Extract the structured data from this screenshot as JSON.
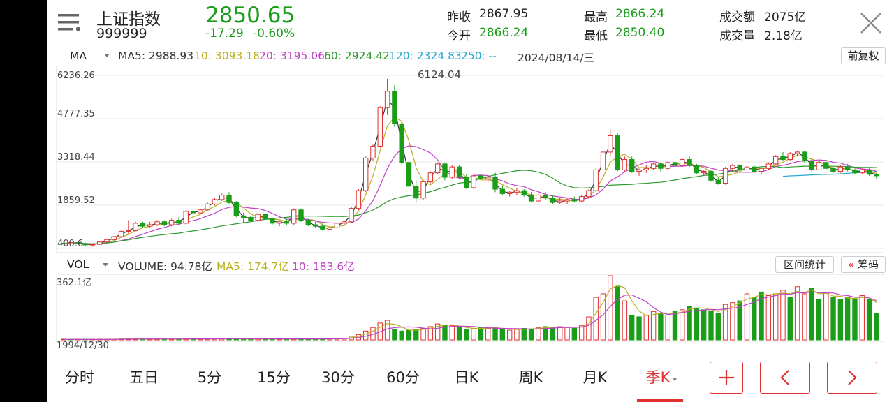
{
  "header": {
    "title": "上证指数",
    "code": "999999",
    "price": "2850.65",
    "change": "-17.29",
    "change_pct": "-0.60%",
    "stats": [
      {
        "label": "昨收",
        "value": "2867.95",
        "color": "#222222"
      },
      {
        "label": "今开",
        "value": "2866.24",
        "color": "#1a9e1a"
      },
      {
        "label": "最高",
        "value": "2866.24",
        "color": "#1a9e1a"
      },
      {
        "label": "最低",
        "value": "2850.40",
        "color": "#1a9e1a"
      },
      {
        "label": "成交额",
        "value": "2075亿",
        "color": "#222222"
      },
      {
        "label": "成交量",
        "value": "2.18亿",
        "color": "#222222"
      }
    ]
  },
  "ma_bar": {
    "label": "MA",
    "ma5": "MA5: 2988.93",
    "ma10": "10: 3093.18",
    "ma20": "20: 3195.06",
    "ma60": "60: 2924.42",
    "ma120": "120: 2324.83",
    "ma250": "250: --",
    "date": "2024/08/14/三",
    "adjust_button": "前复权"
  },
  "vol_bar": {
    "label": "VOL",
    "volume": "VOLUME: 94.78亿",
    "ma5": "MA5: 174.7亿",
    "ma10": "10: 183.6亿",
    "range_stat_button": "区间统计",
    "chips_button": "筹码",
    "chips_icon": "«"
  },
  "chart": {
    "y_ticks": [
      "6236.26",
      "4777.35",
      "3318.44",
      "1859.52",
      "400.6"
    ],
    "peak_label": "6124.04",
    "vol_max_label": "362.1亿",
    "start_date": "1994/12/30"
  },
  "colors": {
    "up": "#e03030",
    "down": "#1a9e1a",
    "ma5": "#333333",
    "ma10": "#b8b020",
    "ma20": "#c040c8",
    "ma60": "#2e9a2e",
    "ma120": "#2aa8d0"
  },
  "tabs": [
    "分时",
    "五日",
    "5分",
    "15分",
    "30分",
    "60分",
    "日K",
    "周K",
    "月K",
    "季K"
  ],
  "active_tab": "季K",
  "nav_icons": [
    "plus-icon",
    "chevron-left-icon",
    "chevron-right-icon"
  ],
  "chart_data": {
    "type": "candlestick",
    "y_range": [
      400.6,
      6236.26
    ],
    "ohlc": [
      [
        580,
        640,
        520,
        560
      ],
      [
        560,
        620,
        520,
        600
      ],
      [
        600,
        650,
        540,
        570
      ],
      [
        570,
        600,
        470,
        520
      ],
      [
        520,
        560,
        460,
        540
      ],
      [
        540,
        640,
        520,
        620
      ],
      [
        620,
        720,
        600,
        700
      ],
      [
        700,
        820,
        680,
        800
      ],
      [
        800,
        1000,
        780,
        980
      ],
      [
        980,
        1350,
        900,
        1000
      ],
      [
        1000,
        1300,
        980,
        1250
      ],
      [
        1250,
        1300,
        1100,
        1150
      ],
      [
        1150,
        1300,
        1100,
        1200
      ],
      [
        1200,
        1350,
        1150,
        1300
      ],
      [
        1300,
        1350,
        1150,
        1200
      ],
      [
        1200,
        1400,
        1150,
        1350
      ],
      [
        1350,
        1450,
        1200,
        1250
      ],
      [
        1250,
        1700,
        1200,
        1650
      ],
      [
        1650,
        1800,
        1500,
        1600
      ],
      [
        1600,
        1750,
        1550,
        1700
      ],
      [
        1700,
        1950,
        1650,
        1900
      ],
      [
        1900,
        2100,
        1850,
        2050
      ],
      [
        2050,
        2250,
        2000,
        2200
      ],
      [
        2200,
        2300,
        1900,
        1950
      ],
      [
        1950,
        2000,
        1450,
        1500
      ],
      [
        1500,
        1600,
        1250,
        1450
      ],
      [
        1450,
        1500,
        1300,
        1350
      ],
      [
        1350,
        1600,
        1300,
        1550
      ],
      [
        1550,
        1600,
        1350,
        1400
      ],
      [
        1400,
        1450,
        1200,
        1250
      ],
      [
        1250,
        1350,
        1150,
        1300
      ],
      [
        1300,
        1400,
        1200,
        1250
      ],
      [
        1250,
        1750,
        1200,
        1700
      ],
      [
        1700,
        1750,
        1300,
        1350
      ],
      [
        1350,
        1400,
        1150,
        1200
      ],
      [
        1200,
        1300,
        1100,
        1150
      ],
      [
        1150,
        1250,
        1000,
        1050
      ],
      [
        1050,
        1150,
        1020,
        1100
      ],
      [
        1100,
        1300,
        1050,
        1250
      ],
      [
        1250,
        1350,
        1150,
        1300
      ],
      [
        1300,
        1800,
        1250,
        1750
      ],
      [
        1750,
        2400,
        1700,
        2350
      ],
      [
        2350,
        3500,
        2300,
        3450
      ],
      [
        3450,
        3900,
        3350,
        3850
      ],
      [
        3850,
        5200,
        3800,
        5150
      ],
      [
        5150,
        6124,
        4900,
        5700
      ],
      [
        5700,
        5900,
        4500,
        4600
      ],
      [
        4600,
        4700,
        3200,
        3300
      ],
      [
        3300,
        3400,
        2400,
        2500
      ],
      [
        2500,
        2700,
        1950,
        2100
      ],
      [
        2100,
        2700,
        2050,
        2650
      ],
      [
        2650,
        3000,
        2600,
        2950
      ],
      [
        2950,
        3300,
        2900,
        3250
      ],
      [
        3250,
        3300,
        2700,
        2800
      ],
      [
        2800,
        3200,
        2750,
        3150
      ],
      [
        3150,
        3200,
        2750,
        2800
      ],
      [
        2800,
        2900,
        2400,
        2450
      ],
      [
        2450,
        2900,
        2400,
        2850
      ],
      [
        2850,
        2950,
        2700,
        2750
      ],
      [
        2750,
        2850,
        2650,
        2800
      ],
      [
        2800,
        2950,
        2300,
        2400
      ],
      [
        2400,
        2500,
        2200,
        2250
      ],
      [
        2250,
        2350,
        2150,
        2300
      ],
      [
        2300,
        2450,
        2200,
        2350
      ],
      [
        2350,
        2400,
        2150,
        2200
      ],
      [
        2200,
        2300,
        1950,
        2000
      ],
      [
        2000,
        2250,
        1950,
        2200
      ],
      [
        2200,
        2300,
        2050,
        2100
      ],
      [
        2100,
        2200,
        1900,
        1950
      ],
      [
        1950,
        2100,
        1900,
        2000
      ],
      [
        2000,
        2100,
        1900,
        2050
      ],
      [
        2050,
        2150,
        1950,
        2000
      ],
      [
        2000,
        2200,
        1950,
        2150
      ],
      [
        2150,
        2400,
        2100,
        2350
      ],
      [
        2350,
        3100,
        2300,
        3050
      ],
      [
        3050,
        3700,
        3000,
        3650
      ],
      [
        3650,
        4400,
        3500,
        4200
      ],
      [
        4200,
        4300,
        3000,
        3050
      ],
      [
        3050,
        3500,
        3000,
        3400
      ],
      [
        3400,
        3500,
        2950,
        3000
      ],
      [
        3000,
        3100,
        2850,
        3050
      ],
      [
        3050,
        3200,
        2950,
        3100
      ],
      [
        3100,
        3300,
        3050,
        3250
      ],
      [
        3250,
        3300,
        3000,
        3100
      ],
      [
        3100,
        3350,
        3050,
        3300
      ],
      [
        3300,
        3400,
        3150,
        3200
      ],
      [
        3200,
        3450,
        3150,
        3400
      ],
      [
        3400,
        3500,
        3150,
        3200
      ],
      [
        3200,
        3250,
        2900,
        2950
      ],
      [
        2950,
        3050,
        2850,
        3000
      ],
      [
        3000,
        3050,
        2650,
        2700
      ],
      [
        2700,
        2800,
        2550,
        2600
      ],
      [
        2600,
        3150,
        2550,
        3100
      ],
      [
        3100,
        3250,
        3000,
        3200
      ],
      [
        3200,
        3250,
        2950,
        3050
      ],
      [
        3050,
        3200,
        2950,
        3150
      ],
      [
        3150,
        3200,
        2950,
        3000
      ],
      [
        3000,
        3150,
        2900,
        3100
      ],
      [
        3100,
        3300,
        3050,
        3250
      ],
      [
        3250,
        3550,
        3200,
        3500
      ],
      [
        3500,
        3650,
        3350,
        3400
      ],
      [
        3400,
        3650,
        3350,
        3600
      ],
      [
        3600,
        3700,
        3500,
        3650
      ],
      [
        3650,
        3700,
        3300,
        3350
      ],
      [
        3350,
        3450,
        3000,
        3050
      ],
      [
        3050,
        3350,
        3000,
        3300
      ],
      [
        3300,
        3400,
        3050,
        3100
      ],
      [
        3100,
        3150,
        2950,
        3000
      ],
      [
        3000,
        3200,
        2950,
        3150
      ],
      [
        3150,
        3250,
        3000,
        3050
      ],
      [
        3050,
        3100,
        2900,
        2950
      ],
      [
        2950,
        3100,
        2900,
        3050
      ],
      [
        3050,
        3100,
        2850,
        2900
      ],
      [
        2900,
        2950,
        2750,
        2850
      ]
    ],
    "volume": [
      [
        3,
        1
      ],
      [
        2,
        0
      ],
      [
        3,
        1
      ],
      [
        2,
        0
      ],
      [
        2,
        1
      ],
      [
        3,
        1
      ],
      [
        4,
        1
      ],
      [
        4,
        1
      ],
      [
        5,
        1
      ],
      [
        6,
        1
      ],
      [
        5,
        1
      ],
      [
        5,
        0
      ],
      [
        4,
        1
      ],
      [
        5,
        1
      ],
      [
        5,
        0
      ],
      [
        5,
        1
      ],
      [
        5,
        0
      ],
      [
        6,
        1
      ],
      [
        6,
        0
      ],
      [
        5,
        1
      ],
      [
        6,
        1
      ],
      [
        7,
        1
      ],
      [
        8,
        1
      ],
      [
        7,
        0
      ],
      [
        6,
        0
      ],
      [
        5,
        0
      ],
      [
        5,
        0
      ],
      [
        6,
        1
      ],
      [
        6,
        0
      ],
      [
        5,
        0
      ],
      [
        5,
        1
      ],
      [
        5,
        0
      ],
      [
        7,
        1
      ],
      [
        6,
        0
      ],
      [
        5,
        0
      ],
      [
        5,
        0
      ],
      [
        6,
        0
      ],
      [
        6,
        1
      ],
      [
        8,
        1
      ],
      [
        10,
        1
      ],
      [
        20,
        1
      ],
      [
        30,
        1
      ],
      [
        50,
        1
      ],
      [
        70,
        1
      ],
      [
        95,
        1
      ],
      [
        110,
        1
      ],
      [
        60,
        0
      ],
      [
        50,
        0
      ],
      [
        55,
        0
      ],
      [
        60,
        0
      ],
      [
        65,
        1
      ],
      [
        75,
        1
      ],
      [
        90,
        1
      ],
      [
        85,
        0
      ],
      [
        80,
        1
      ],
      [
        70,
        0
      ],
      [
        60,
        0
      ],
      [
        65,
        1
      ],
      [
        70,
        0
      ],
      [
        65,
        1
      ],
      [
        70,
        0
      ],
      [
        60,
        0
      ],
      [
        55,
        1
      ],
      [
        60,
        1
      ],
      [
        65,
        0
      ],
      [
        60,
        0
      ],
      [
        70,
        1
      ],
      [
        75,
        0
      ],
      [
        70,
        0
      ],
      [
        75,
        1
      ],
      [
        70,
        1
      ],
      [
        65,
        0
      ],
      [
        80,
        1
      ],
      [
        130,
        1
      ],
      [
        240,
        1
      ],
      [
        260,
        1
      ],
      [
        362,
        1
      ],
      [
        300,
        0
      ],
      [
        220,
        1
      ],
      [
        140,
        0
      ],
      [
        130,
        0
      ],
      [
        140,
        1
      ],
      [
        160,
        1
      ],
      [
        150,
        0
      ],
      [
        140,
        1
      ],
      [
        160,
        0
      ],
      [
        170,
        1
      ],
      [
        190,
        0
      ],
      [
        180,
        0
      ],
      [
        170,
        0
      ],
      [
        160,
        0
      ],
      [
        150,
        0
      ],
      [
        200,
        1
      ],
      [
        210,
        1
      ],
      [
        220,
        0
      ],
      [
        260,
        1
      ],
      [
        240,
        0
      ],
      [
        270,
        0
      ],
      [
        250,
        1
      ],
      [
        260,
        1
      ],
      [
        280,
        1
      ],
      [
        240,
        0
      ],
      [
        300,
        1
      ],
      [
        260,
        1
      ],
      [
        290,
        0
      ],
      [
        230,
        0
      ],
      [
        270,
        1
      ],
      [
        240,
        0
      ],
      [
        230,
        0
      ],
      [
        240,
        0
      ],
      [
        230,
        0
      ],
      [
        250,
        1
      ],
      [
        230,
        0
      ],
      [
        150,
        0
      ]
    ]
  }
}
